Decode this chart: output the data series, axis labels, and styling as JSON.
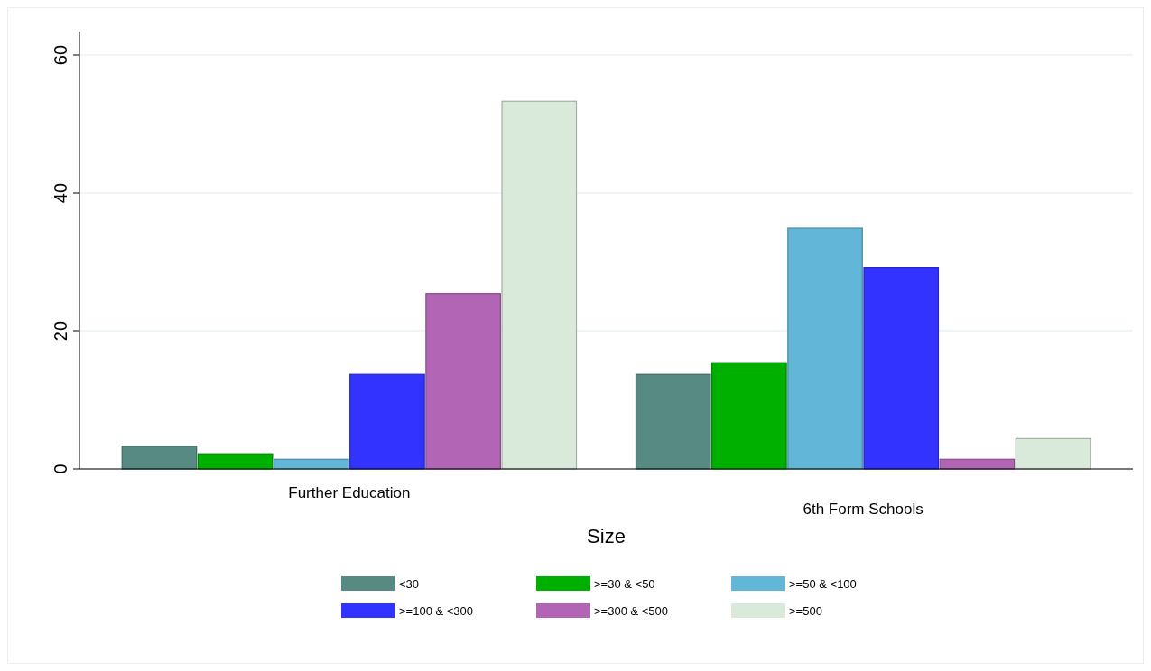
{
  "chart_data": {
    "type": "bar",
    "xlabel": "Size",
    "categories": [
      "Further Education",
      "6th Form Schools"
    ],
    "series": [
      {
        "name": "<30",
        "color": "#568a82",
        "values": [
          3.3,
          13.7
        ]
      },
      {
        "name": ">=30 & <50",
        "color": "#00b000",
        "values": [
          2.2,
          15.4
        ]
      },
      {
        "name": ">=50 & <100",
        "color": "#62b6d8",
        "values": [
          1.4,
          34.9
        ]
      },
      {
        "name": ">=100 & <300",
        "color": "#3333ff",
        "values": [
          13.7,
          29.2
        ]
      },
      {
        "name": ">=300 & <500",
        "color": "#b265b4",
        "values": [
          25.4,
          1.4
        ]
      },
      {
        "name": ">=500",
        "color": "#d9eadb",
        "values": [
          53.3,
          4.4
        ]
      }
    ],
    "ylim": [
      0,
      63.4
    ],
    "yticks": [
      0,
      20,
      40,
      60
    ],
    "grid": "y",
    "legend": "bottom"
  }
}
